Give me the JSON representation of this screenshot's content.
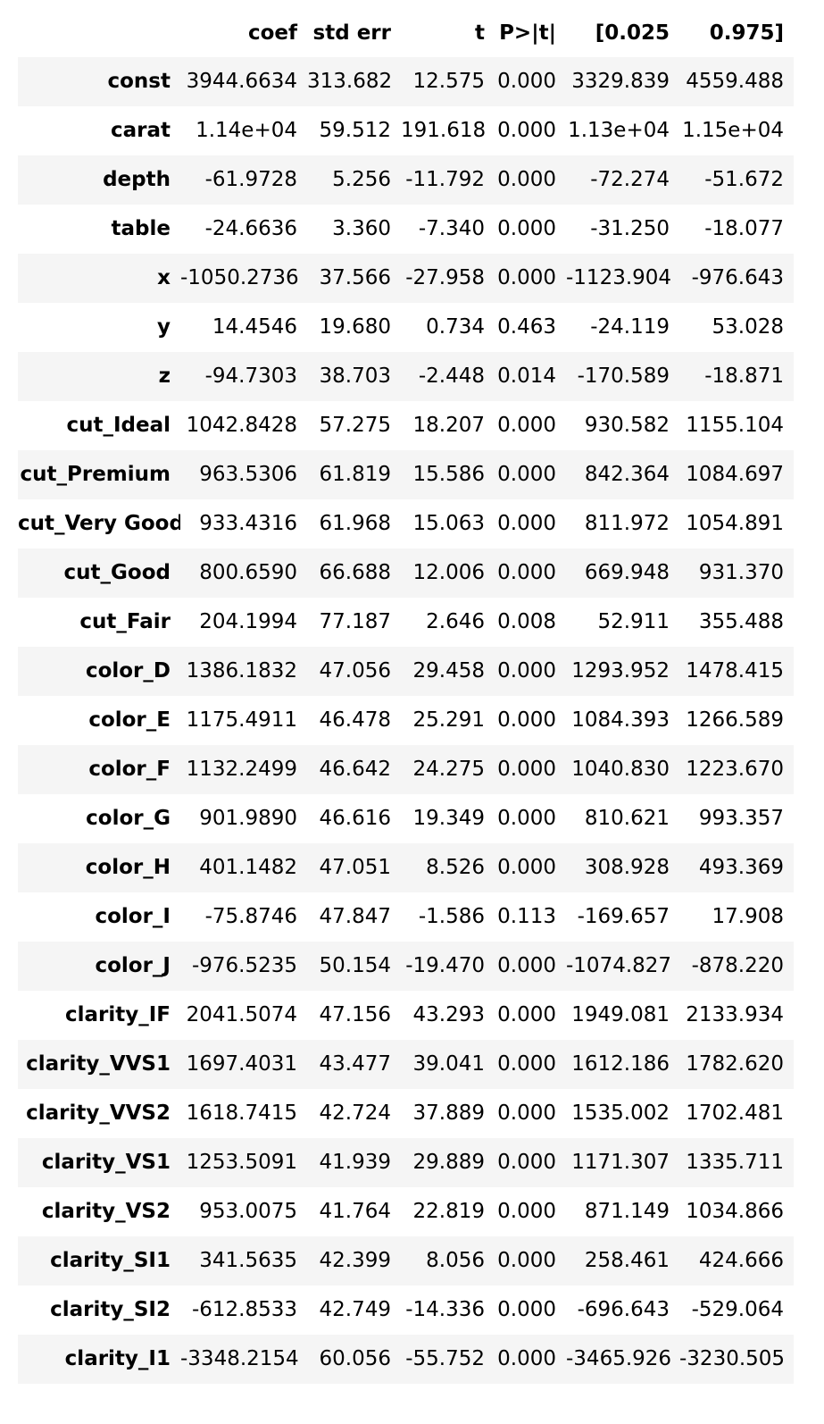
{
  "table": {
    "columns": [
      "",
      "coef",
      "std err",
      "t",
      "P>|t|",
      "[0.025",
      "0.975]"
    ],
    "rows": [
      {
        "label": "const",
        "values": [
          "3944.6634",
          "313.682",
          "12.575",
          "0.000",
          "3329.839",
          "4559.488"
        ]
      },
      {
        "label": "carat",
        "values": [
          "1.14e+04",
          "59.512",
          "191.618",
          "0.000",
          "1.13e+04",
          "1.15e+04"
        ]
      },
      {
        "label": "depth",
        "values": [
          "-61.9728",
          "5.256",
          "-11.792",
          "0.000",
          "-72.274",
          "-51.672"
        ]
      },
      {
        "label": "table",
        "values": [
          "-24.6636",
          "3.360",
          "-7.340",
          "0.000",
          "-31.250",
          "-18.077"
        ]
      },
      {
        "label": "x",
        "values": [
          "-1050.2736",
          "37.566",
          "-27.958",
          "0.000",
          "-1123.904",
          "-976.643"
        ]
      },
      {
        "label": "y",
        "values": [
          "14.4546",
          "19.680",
          "0.734",
          "0.463",
          "-24.119",
          "53.028"
        ]
      },
      {
        "label": "z",
        "values": [
          "-94.7303",
          "38.703",
          "-2.448",
          "0.014",
          "-170.589",
          "-18.871"
        ]
      },
      {
        "label": "cut_Ideal",
        "values": [
          "1042.8428",
          "57.275",
          "18.207",
          "0.000",
          "930.582",
          "1155.104"
        ]
      },
      {
        "label": "cut_Premium",
        "values": [
          "963.5306",
          "61.819",
          "15.586",
          "0.000",
          "842.364",
          "1084.697"
        ]
      },
      {
        "label": "cut_Very Good",
        "values": [
          "933.4316",
          "61.968",
          "15.063",
          "0.000",
          "811.972",
          "1054.891"
        ]
      },
      {
        "label": "cut_Good",
        "values": [
          "800.6590",
          "66.688",
          "12.006",
          "0.000",
          "669.948",
          "931.370"
        ]
      },
      {
        "label": "cut_Fair",
        "values": [
          "204.1994",
          "77.187",
          "2.646",
          "0.008",
          "52.911",
          "355.488"
        ]
      },
      {
        "label": "color_D",
        "values": [
          "1386.1832",
          "47.056",
          "29.458",
          "0.000",
          "1293.952",
          "1478.415"
        ]
      },
      {
        "label": "color_E",
        "values": [
          "1175.4911",
          "46.478",
          "25.291",
          "0.000",
          "1084.393",
          "1266.589"
        ]
      },
      {
        "label": "color_F",
        "values": [
          "1132.2499",
          "46.642",
          "24.275",
          "0.000",
          "1040.830",
          "1223.670"
        ]
      },
      {
        "label": "color_G",
        "values": [
          "901.9890",
          "46.616",
          "19.349",
          "0.000",
          "810.621",
          "993.357"
        ]
      },
      {
        "label": "color_H",
        "values": [
          "401.1482",
          "47.051",
          "8.526",
          "0.000",
          "308.928",
          "493.369"
        ]
      },
      {
        "label": "color_I",
        "values": [
          "-75.8746",
          "47.847",
          "-1.586",
          "0.113",
          "-169.657",
          "17.908"
        ]
      },
      {
        "label": "color_J",
        "values": [
          "-976.5235",
          "50.154",
          "-19.470",
          "0.000",
          "-1074.827",
          "-878.220"
        ]
      },
      {
        "label": "clarity_IF",
        "values": [
          "2041.5074",
          "47.156",
          "43.293",
          "0.000",
          "1949.081",
          "2133.934"
        ]
      },
      {
        "label": "clarity_VVS1",
        "values": [
          "1697.4031",
          "43.477",
          "39.041",
          "0.000",
          "1612.186",
          "1782.620"
        ]
      },
      {
        "label": "clarity_VVS2",
        "values": [
          "1618.7415",
          "42.724",
          "37.889",
          "0.000",
          "1535.002",
          "1702.481"
        ]
      },
      {
        "label": "clarity_VS1",
        "values": [
          "1253.5091",
          "41.939",
          "29.889",
          "0.000",
          "1171.307",
          "1335.711"
        ]
      },
      {
        "label": "clarity_VS2",
        "values": [
          "953.0075",
          "41.764",
          "22.819",
          "0.000",
          "871.149",
          "1034.866"
        ]
      },
      {
        "label": "clarity_SI1",
        "values": [
          "341.5635",
          "42.399",
          "8.056",
          "0.000",
          "258.461",
          "424.666"
        ]
      },
      {
        "label": "clarity_SI2",
        "values": [
          "-612.8533",
          "42.749",
          "-14.336",
          "0.000",
          "-696.643",
          "-529.064"
        ]
      },
      {
        "label": "clarity_I1",
        "values": [
          "-3348.2154",
          "60.056",
          "-55.752",
          "0.000",
          "-3465.926",
          "-3230.505"
        ]
      }
    ]
  }
}
